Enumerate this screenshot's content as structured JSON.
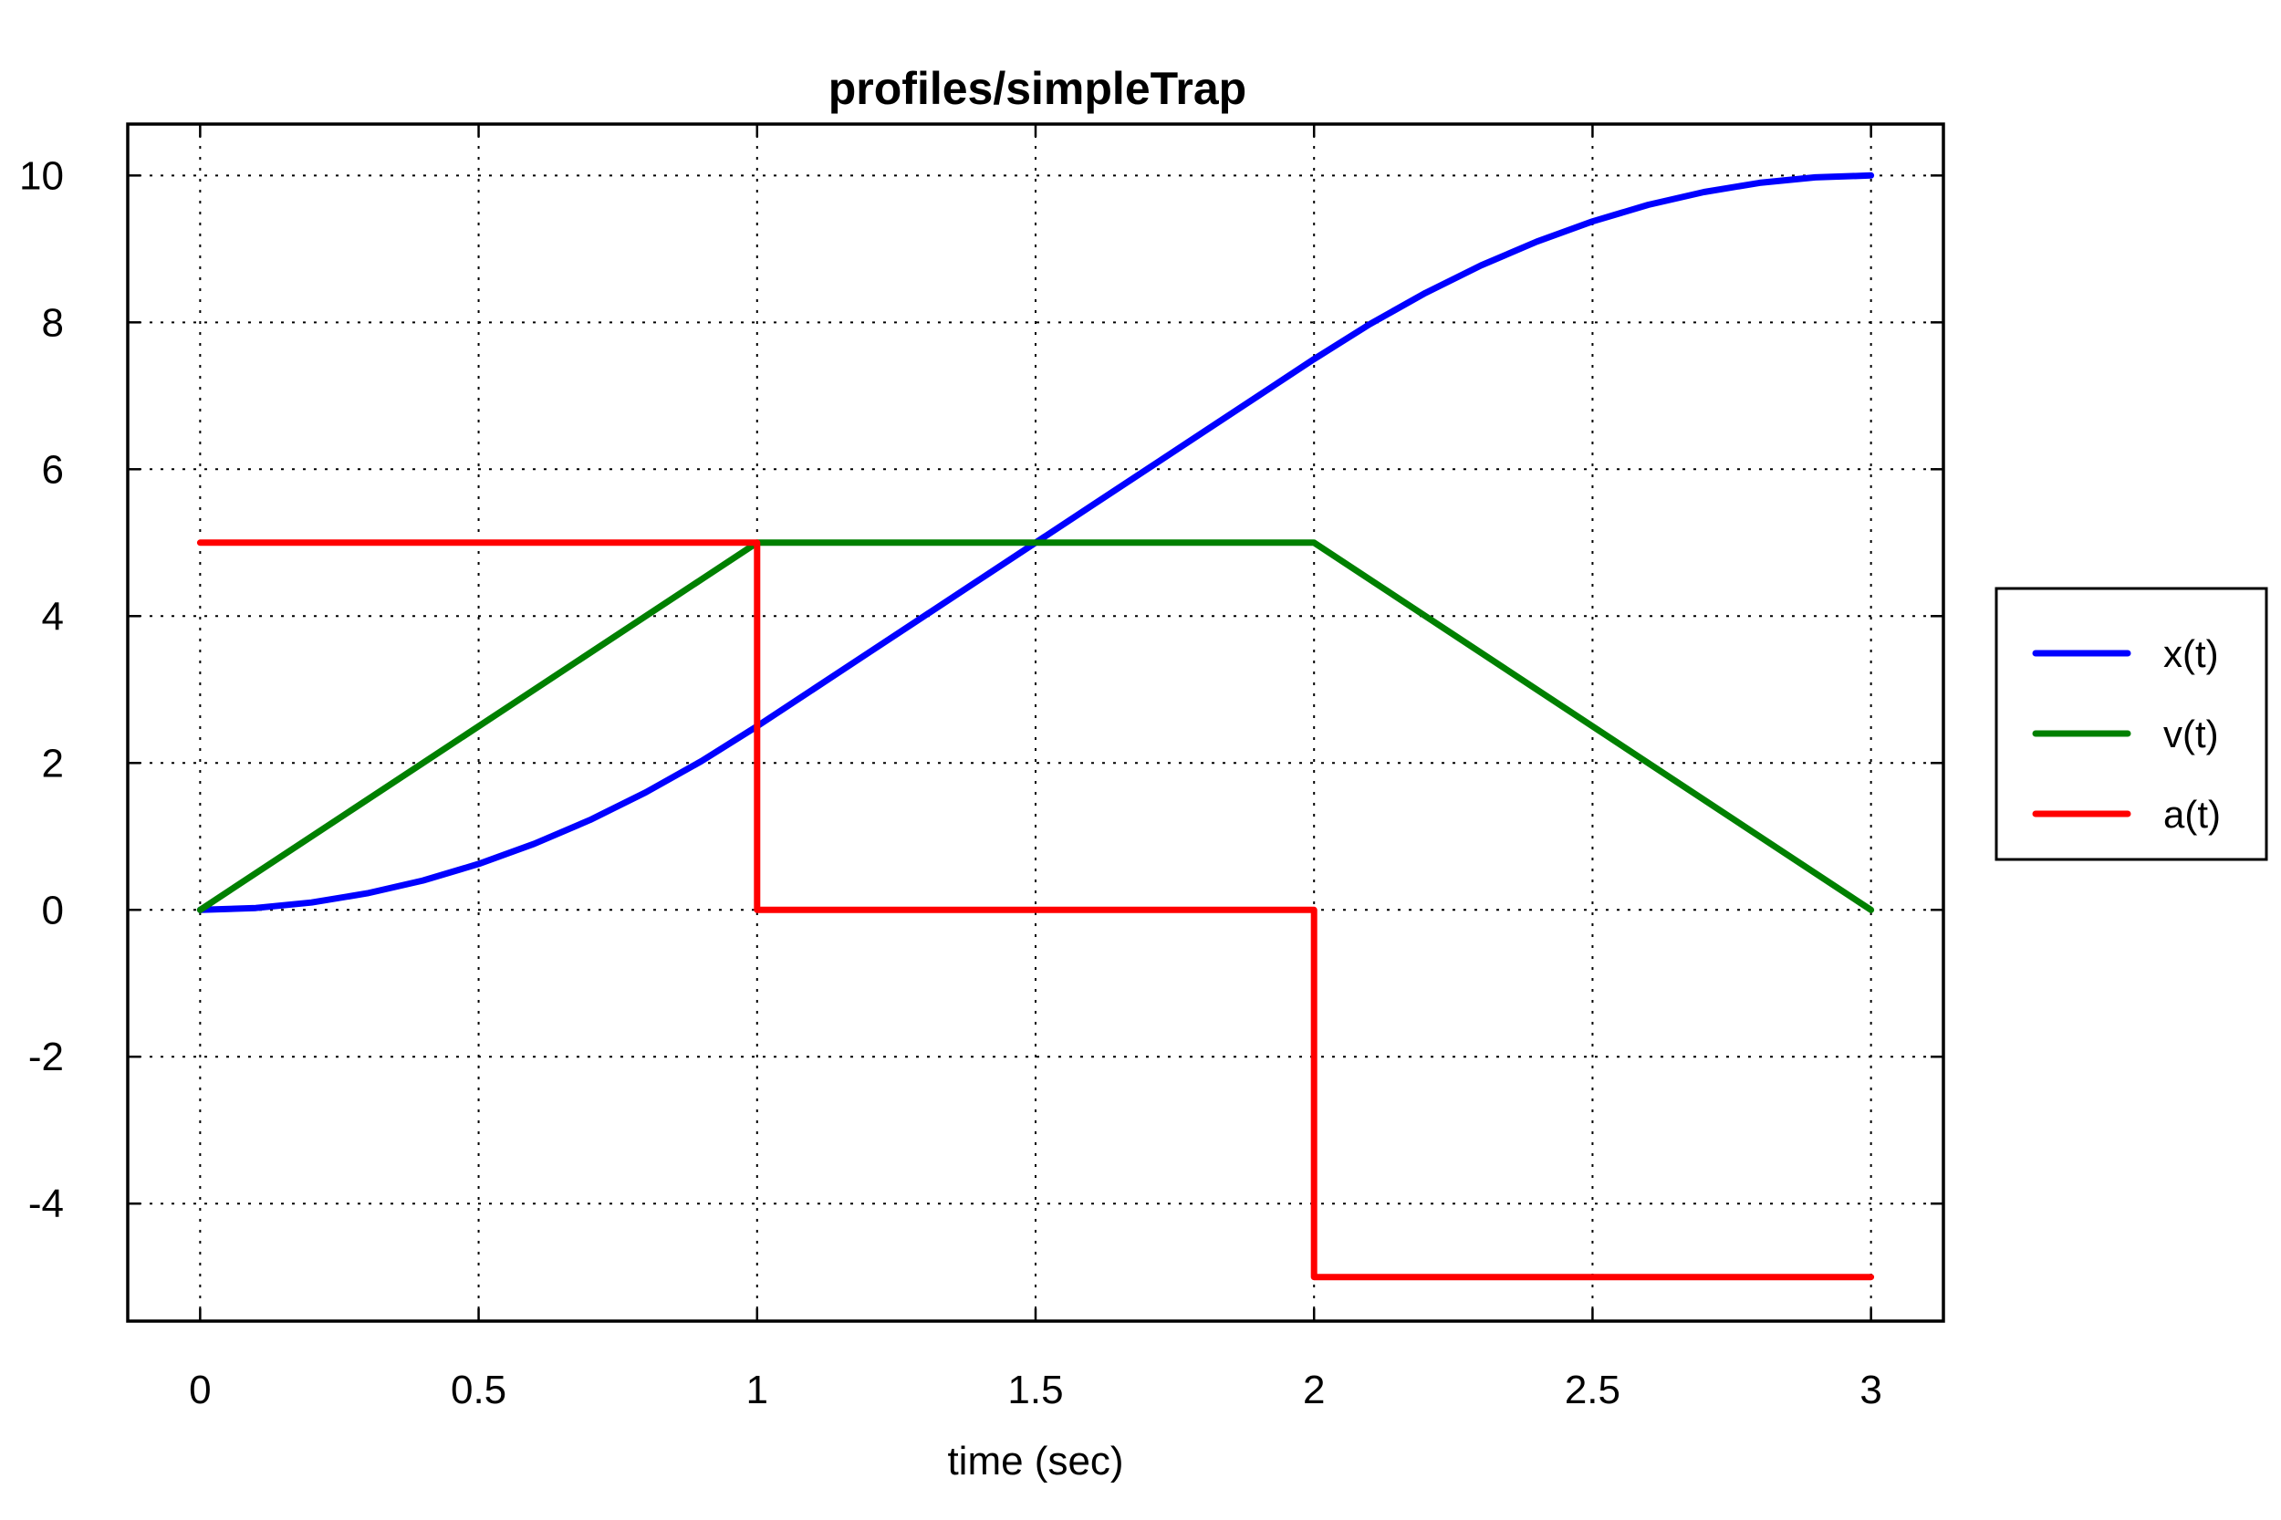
{
  "chart_data": {
    "type": "line",
    "title": "profiles/simpleTrap",
    "xlabel": "time (sec)",
    "ylabel": "",
    "xlim": [
      -0.13,
      3.13
    ],
    "ylim": [
      -5.6,
      10.7
    ],
    "xticks": [
      0,
      0.5,
      1,
      1.5,
      2,
      2.5,
      3
    ],
    "xtick_labels": [
      "0",
      "0.5",
      "1",
      "1.5",
      "2",
      "2.5",
      "3"
    ],
    "yticks": [
      -4,
      -2,
      0,
      2,
      4,
      6,
      8,
      10
    ],
    "ytick_labels": [
      "-4",
      "-2",
      "0",
      "2",
      "4",
      "6",
      "8",
      "10"
    ],
    "grid": true,
    "legend_position": "outside-right",
    "series": [
      {
        "name": "x(t)",
        "color": "#0000ff",
        "x": [
          0,
          0.1,
          0.2,
          0.3,
          0.4,
          0.5,
          0.6,
          0.7,
          0.8,
          0.9,
          1.0,
          1.1,
          1.2,
          1.3,
          1.4,
          1.5,
          1.6,
          1.7,
          1.8,
          1.9,
          2.0,
          2.1,
          2.2,
          2.3,
          2.4,
          2.5,
          2.6,
          2.7,
          2.8,
          2.9,
          3.0
        ],
        "y": [
          0,
          0.025,
          0.1,
          0.225,
          0.4,
          0.625,
          0.9,
          1.225,
          1.6,
          2.025,
          2.5,
          3.0,
          3.5,
          4.0,
          4.5,
          5.0,
          5.5,
          6.0,
          6.5,
          7.0,
          7.5,
          7.975,
          8.4,
          8.775,
          9.1,
          9.375,
          9.6,
          9.775,
          9.9,
          9.975,
          10.0
        ]
      },
      {
        "name": "v(t)",
        "color": "#008000",
        "x": [
          0,
          1,
          2,
          3
        ],
        "y": [
          0,
          5,
          5,
          0
        ]
      },
      {
        "name": "a(t)",
        "color": "#ff0000",
        "x": [
          0,
          1,
          1,
          2,
          2,
          3
        ],
        "y": [
          5,
          5,
          0,
          0,
          -5,
          -5
        ]
      }
    ]
  }
}
